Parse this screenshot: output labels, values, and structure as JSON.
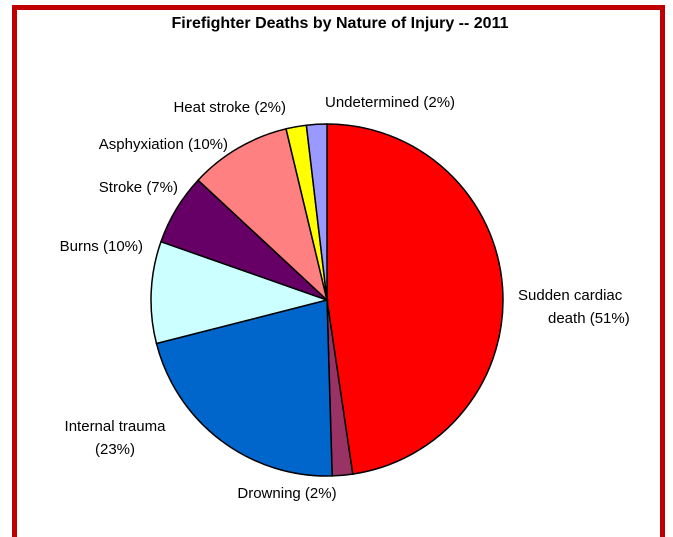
{
  "chart_data": {
    "type": "pie",
    "title": "Firefighter Deaths by Nature of Injury -- 2011",
    "categories": [
      "Sudden cardiac death (51%)",
      "Drowning (2%)",
      "Internal trauma (23%)",
      "Burns (10%)",
      "Stroke (7%)",
      "Asphyxiation (10%)",
      "Heat stroke (2%)",
      "Undetermined (2%)"
    ],
    "values": [
      51,
      2,
      23,
      10,
      7,
      10,
      2,
      2
    ],
    "colors": [
      "#ff0000",
      "#993366",
      "#0066cc",
      "#ccffff",
      "#660066",
      "#ff8080",
      "#ffff00",
      "#9999ff"
    ]
  }
}
